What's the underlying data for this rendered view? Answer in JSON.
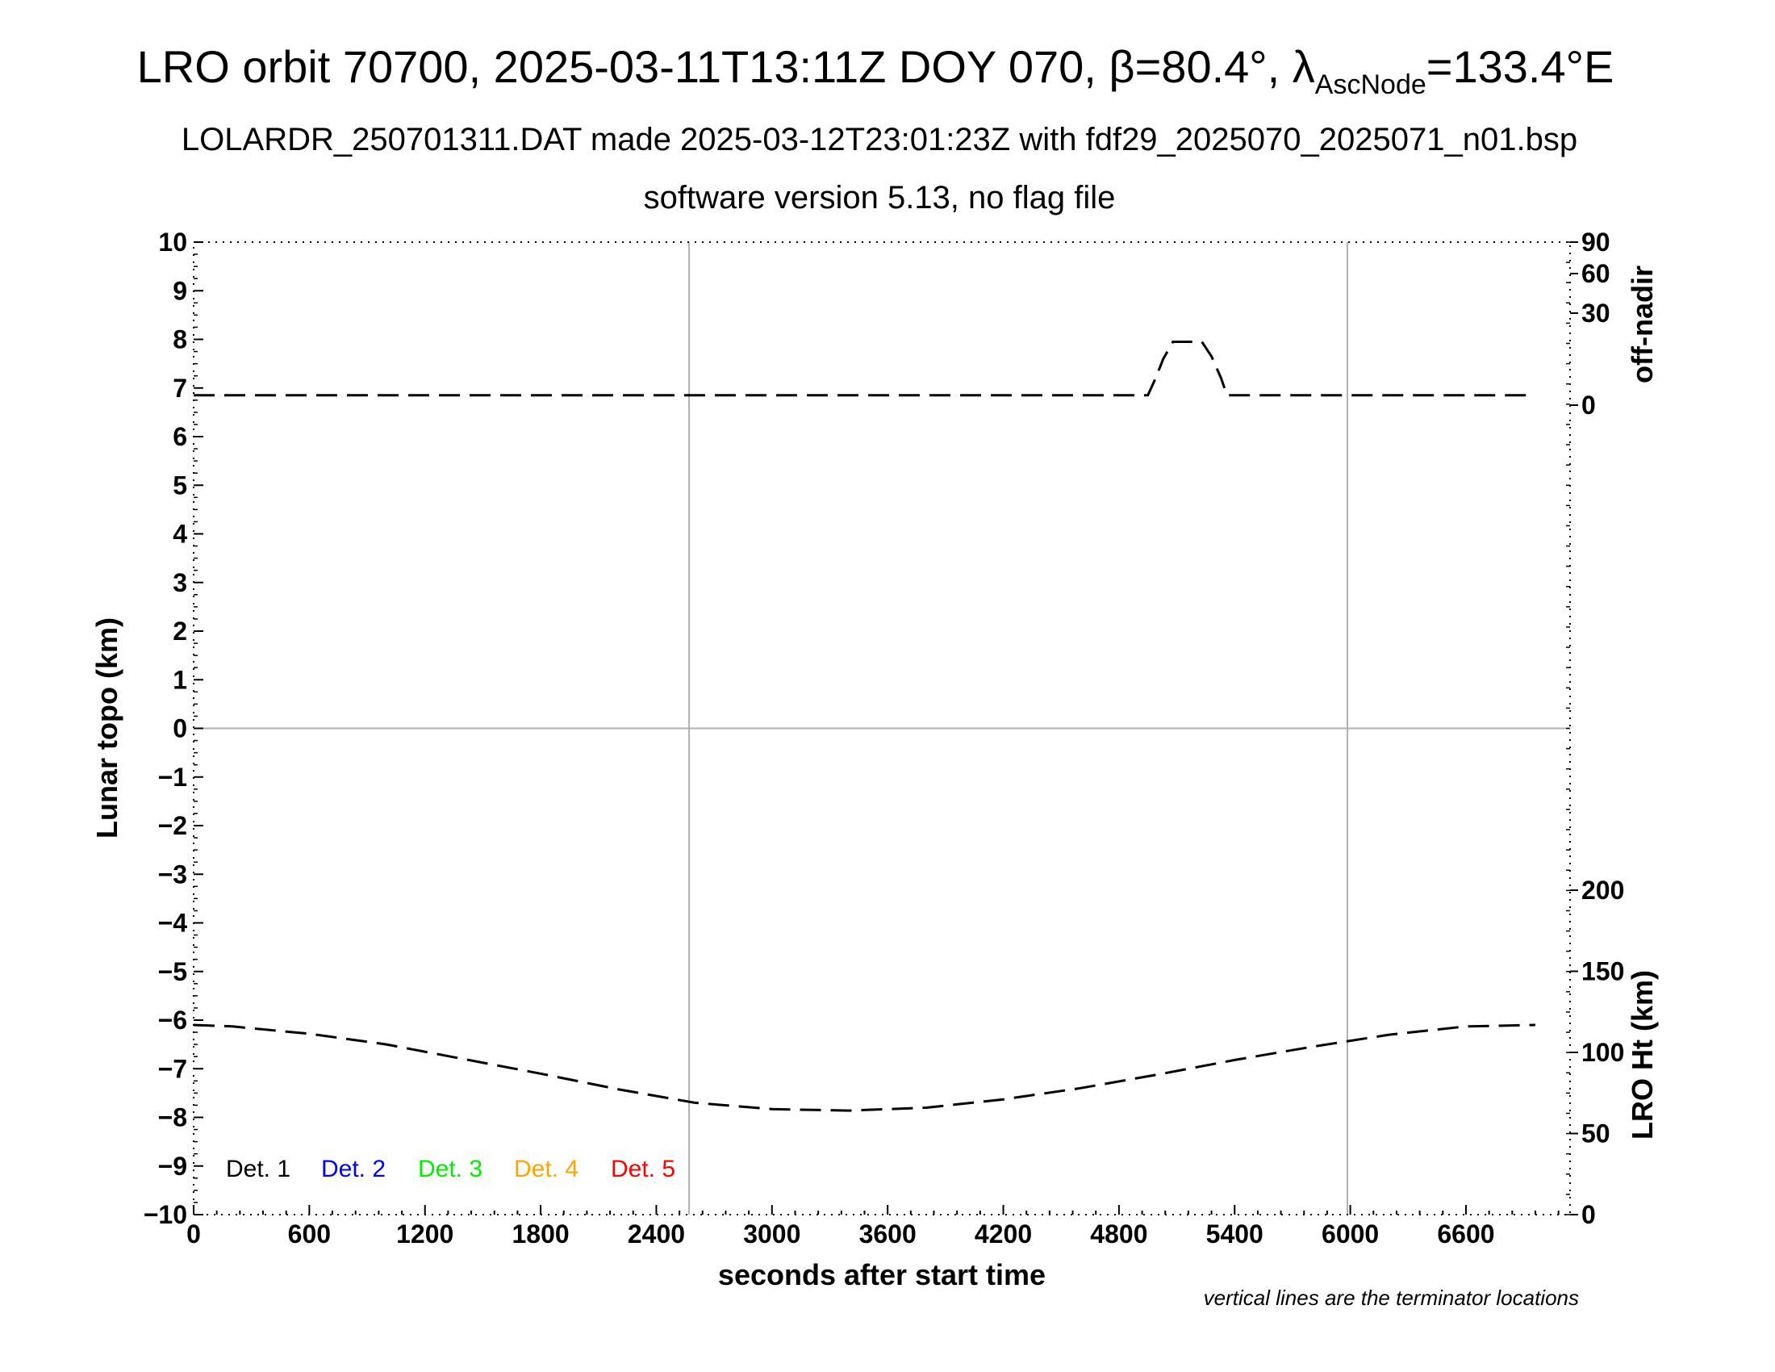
{
  "title": {
    "prefix": "LRO orbit 70700, 2025-03-11T13:11Z DOY 070, β=80.4°, λ",
    "sub": "AscNode",
    "suffix": "=133.4°E"
  },
  "subtitle_line1": "LOLARDR_250701311.DAT made 2025-03-12T23:01:23Z with fdf29_2025070_2025071_n01.bsp",
  "subtitle_line2": "software version 5.13, no flag file",
  "note": "vertical lines are the terminator locations",
  "chart_data": {
    "type": "line",
    "xlabel": "seconds after start time",
    "ylabel_left": "Lunar topo (km)",
    "ylabel_right_top": "off-nadir",
    "ylabel_right_bottom": "LRO Ht (km)",
    "xlim": [
      0,
      7140
    ],
    "ylim_left": [
      -10,
      10
    ],
    "x_ticks": [
      0,
      600,
      1200,
      1800,
      2400,
      3000,
      3600,
      4200,
      4800,
      5400,
      6000,
      6600
    ],
    "y_ticks_left": [
      10,
      9,
      8,
      7,
      6,
      5,
      4,
      3,
      2,
      1,
      0,
      "−1",
      "−2",
      "−3",
      "−4",
      "−5",
      "−6",
      "−7",
      "−8",
      "−9",
      "−10"
    ],
    "y_ticks_right_top": [
      "90",
      "60",
      "30",
      "0"
    ],
    "y_ticks_right_bottom": [
      "200",
      "150",
      "100",
      "50",
      "0"
    ],
    "grid": true,
    "terminator_x": [
      2570,
      5985
    ],
    "legend": {
      "placement": "bottom-left",
      "entries": [
        {
          "label": "Det. 1",
          "color": "#000000"
        },
        {
          "label": "Det. 2",
          "color": "#0000ff"
        },
        {
          "label": "Det. 3",
          "color": "#00ee00"
        },
        {
          "label": "Det. 4",
          "color": "#ffa500"
        },
        {
          "label": "Det. 5",
          "color": "#ff0000"
        }
      ]
    },
    "series": [
      {
        "role": "off-nadir",
        "style": "dashed",
        "color": "#000000",
        "x": [
          0,
          4950,
          4990,
          5030,
          5080,
          5150,
          5230,
          5280,
          5330,
          5360,
          6960
        ],
        "y": [
          6.85,
          6.85,
          7.2,
          7.6,
          7.95,
          7.95,
          7.95,
          7.65,
          7.2,
          6.85,
          6.85
        ]
      },
      {
        "role": "LRO Ht",
        "style": "dashed",
        "color": "#000000",
        "x": [
          0,
          200,
          600,
          1000,
          1400,
          1800,
          2200,
          2600,
          3000,
          3400,
          3800,
          4200,
          4600,
          5000,
          5400,
          5800,
          6200,
          6600,
          6960
        ],
        "y": [
          -6.1,
          -6.13,
          -6.28,
          -6.5,
          -6.8,
          -7.1,
          -7.42,
          -7.7,
          -7.83,
          -7.86,
          -7.8,
          -7.63,
          -7.4,
          -7.12,
          -6.82,
          -6.55,
          -6.3,
          -6.13,
          -6.1
        ]
      }
    ]
  }
}
